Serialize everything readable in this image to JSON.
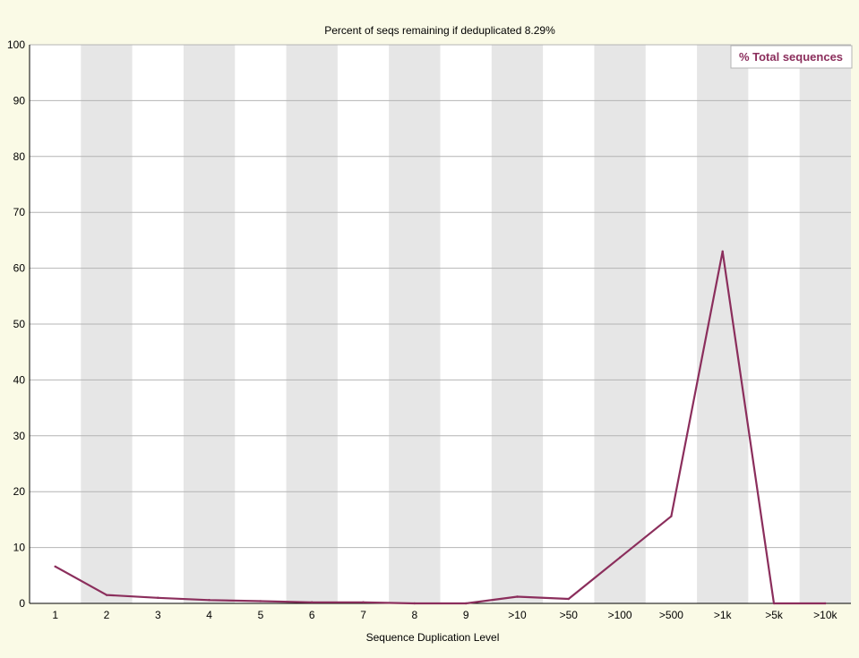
{
  "chart_data": {
    "type": "line",
    "title": "Percent of seqs remaining if deduplicated 8.29%",
    "xlabel": "Sequence Duplication Level",
    "ylabel": "",
    "categories": [
      "1",
      "2",
      "3",
      "4",
      "5",
      "6",
      "7",
      "8",
      "9",
      ">10",
      ">50",
      ">100",
      ">500",
      ">1k",
      ">5k",
      ">10k"
    ],
    "ylim": [
      0,
      100
    ],
    "yticks": [
      0,
      10,
      20,
      30,
      40,
      50,
      60,
      70,
      80,
      90,
      100
    ],
    "grid": true,
    "legend_position": "top-right",
    "series": [
      {
        "name": "% Total sequences",
        "color": "#8b2e5c",
        "values": [
          6.6,
          1.5,
          1.0,
          0.6,
          0.4,
          0.2,
          0.2,
          0.0,
          0.0,
          1.2,
          0.8,
          8.2,
          15.6,
          63.0,
          0.0,
          0.0
        ]
      }
    ],
    "colors": {
      "background": "#fafae6",
      "plot_background": "#ffffff",
      "band": "#e6e6e6",
      "gridline": "#b4b4b4",
      "axis": "#000000",
      "legend_border": "#b4b4b4"
    }
  }
}
